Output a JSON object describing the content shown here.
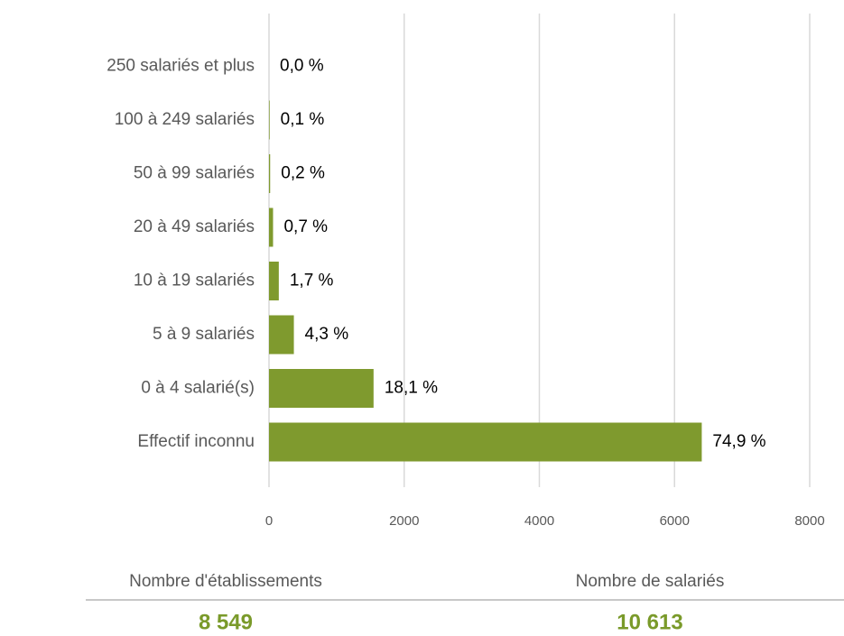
{
  "chart_data": {
    "type": "bar",
    "orientation": "horizontal",
    "categories": [
      "250 salariés et plus",
      "100 à 249 salariés",
      "50 à 99 salariés",
      "20 à 49 salariés",
      "10 à 19 salariés",
      "5 à 9 salariés",
      "0 à 4 salarié(s)",
      "Effectif inconnu"
    ],
    "values": [
      0,
      9,
      17,
      60,
      145,
      368,
      1547,
      6403
    ],
    "value_labels": [
      "0,0 %",
      "0,1 %",
      "0,2 %",
      "0,7 %",
      "1,7 %",
      "4,3 %",
      "18,1 %",
      "74,9 %"
    ],
    "color": "#7f9a2e",
    "xlim": [
      0,
      8000
    ],
    "xticks": [
      0,
      2000,
      4000,
      6000,
      8000
    ],
    "grid": true
  },
  "summary": [
    {
      "label": "Nombre d'établissements",
      "value": "8 549"
    },
    {
      "label": "Nombre de salariés",
      "value": "10 613"
    }
  ]
}
